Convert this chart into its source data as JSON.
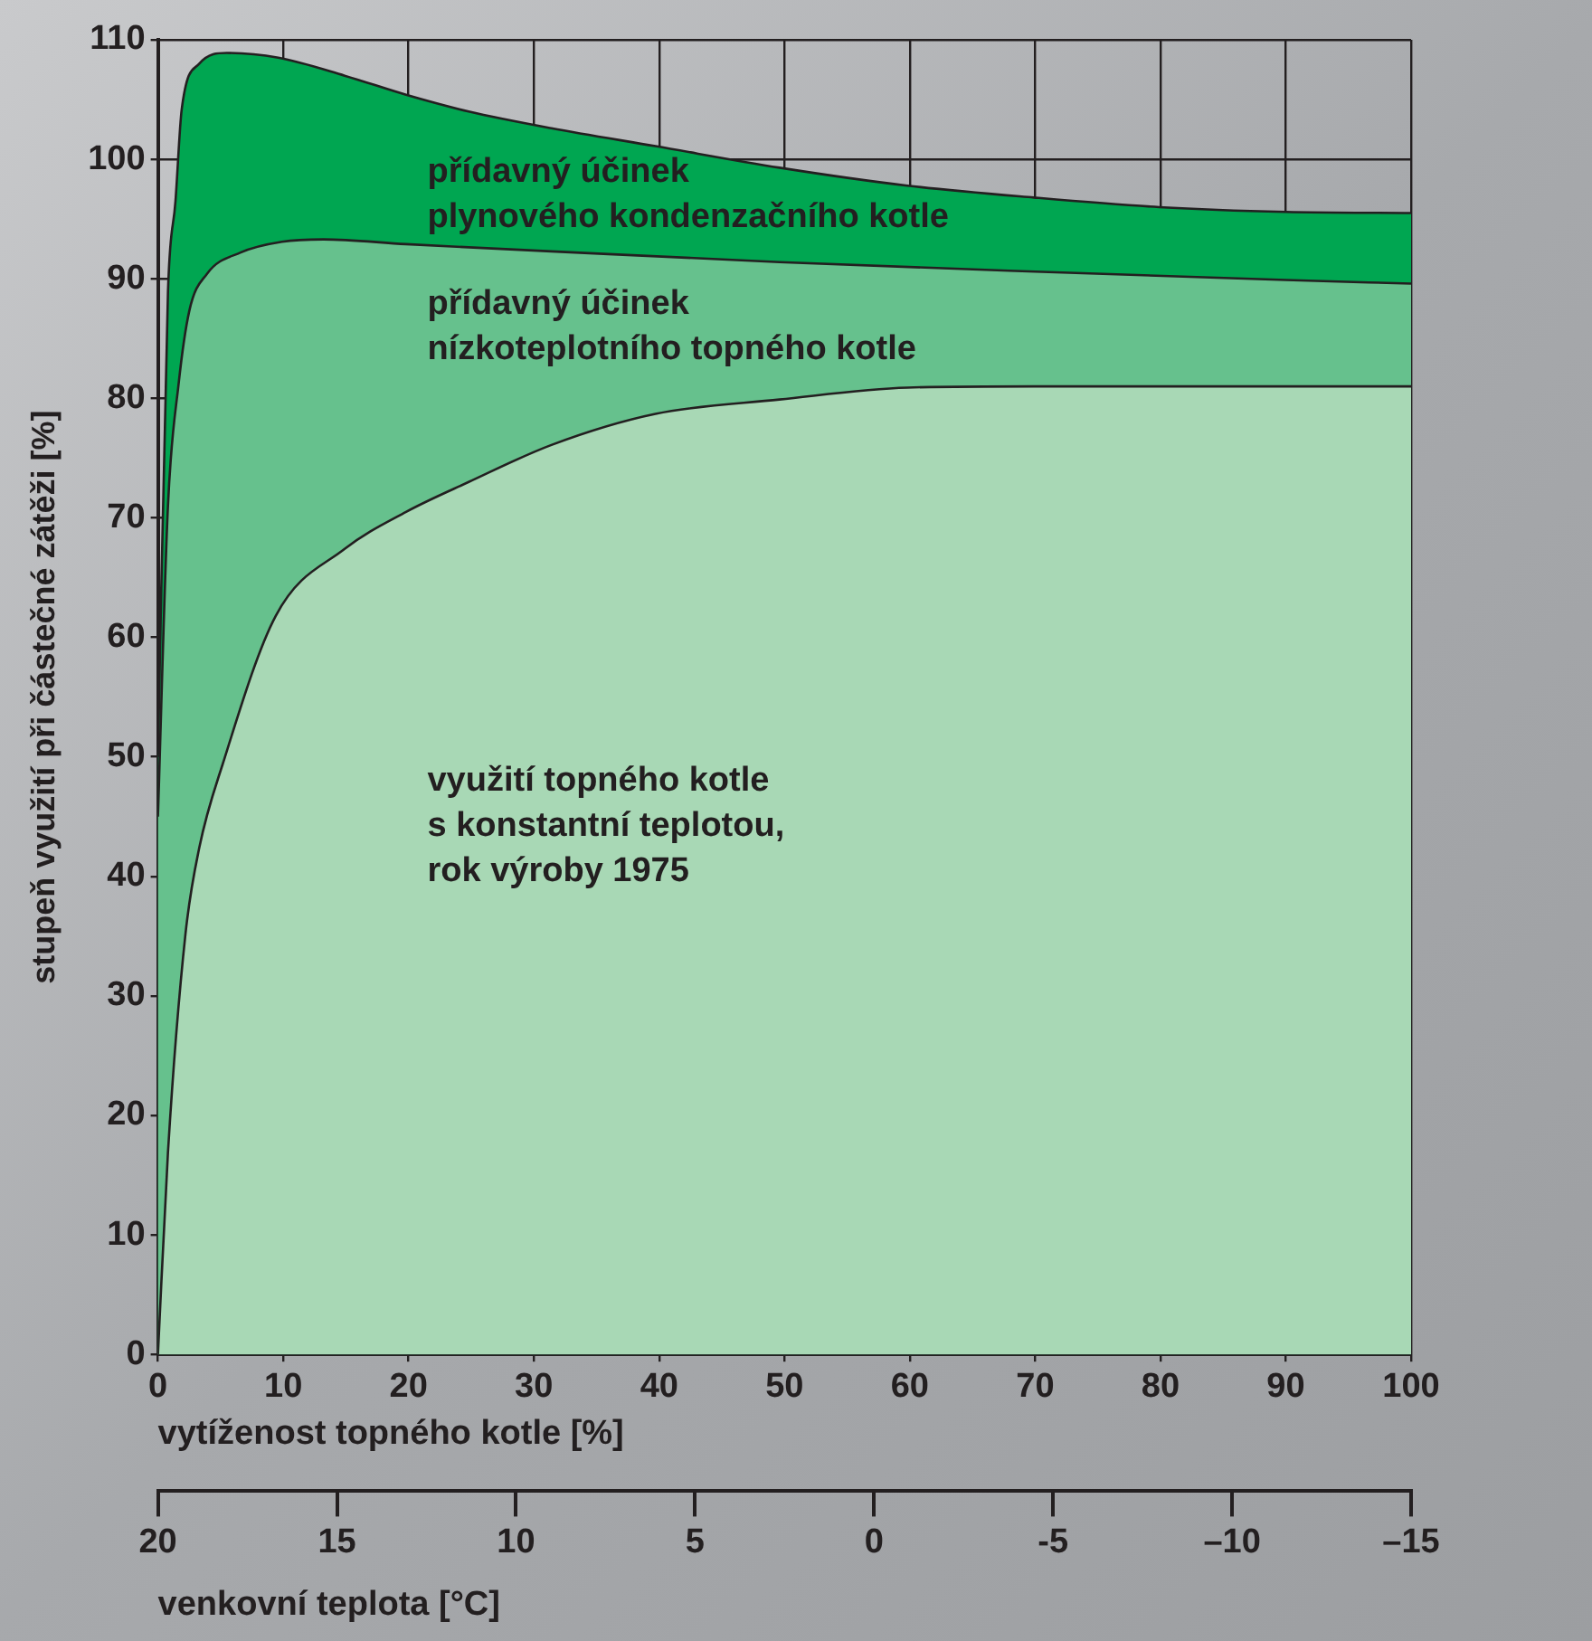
{
  "chart_data": {
    "type": "area",
    "xlabel": "vytíženost topného kotle [%]",
    "ylabel": "stupeň využití při částečné zátěži [%]",
    "x2label": "venkovní teplota [°C]",
    "xlim": [
      0,
      100
    ],
    "xticks": [
      0,
      10,
      20,
      30,
      40,
      50,
      60,
      70,
      80,
      90,
      100
    ],
    "x2lim": [
      20,
      -15
    ],
    "x2ticks": [
      20,
      15,
      10,
      5,
      0,
      {
        "value": -5,
        "label": "-5"
      },
      {
        "value": -10,
        "label": "–10"
      },
      {
        "value": -15,
        "label": "–15"
      }
    ],
    "ylim": [
      0,
      110
    ],
    "yticks": [
      0,
      10,
      20,
      30,
      40,
      50,
      60,
      70,
      80,
      90,
      100,
      110
    ],
    "grid": true,
    "marker": "none",
    "series": [
      {
        "color": "#00a651",
        "x": [
          0,
          0.8,
          1.4,
          1.9,
          3.3,
          5.5,
          9.6,
          14.9,
          19.8,
          24.8,
          31.4,
          39.7,
          49.6,
          59.8,
          69.9,
          79.9,
          90,
          100
        ],
        "values": [
          50,
          88.9,
          96.5,
          104.2,
          108,
          108.9,
          108.5,
          107,
          105.4,
          104,
          102.6,
          101.1,
          99.3,
          97.8,
          96.8,
          96,
          95.6,
          95.5
        ]
      },
      {
        "color": "#66c18d",
        "x": [
          0,
          0.8,
          1.65,
          2.5,
          3.9,
          6.6,
          9.9,
          13.2,
          19.8,
          31.4,
          49.6,
          70,
          90,
          100
        ],
        "values": [
          45,
          71,
          81.2,
          87.3,
          90.4,
          92.2,
          93.1,
          93.3,
          92.9,
          92.3,
          91.4,
          90.6,
          89.9,
          89.6
        ]
      },
      {
        "color": "#a8d8b5",
        "x": [
          0,
          0.8,
          2.2,
          3.3,
          5.2,
          9.4,
          14.9,
          19.8,
          24.8,
          31.4,
          39.7,
          49.6,
          59.8,
          69.9,
          100
        ],
        "values": [
          0,
          16.9,
          35.2,
          42.4,
          49.5,
          61.8,
          67.4,
          70.5,
          73,
          76.1,
          78.7,
          79.9,
          80.9,
          81,
          81
        ]
      }
    ],
    "annotations": [
      "přídavný účinek\nplynového kondenzačního kotle",
      "přídavný účinek\nnízkoteplotního topného kotle",
      "využití topného kotle\ns konstantní teplotou,\nrok výroby 1975"
    ]
  }
}
